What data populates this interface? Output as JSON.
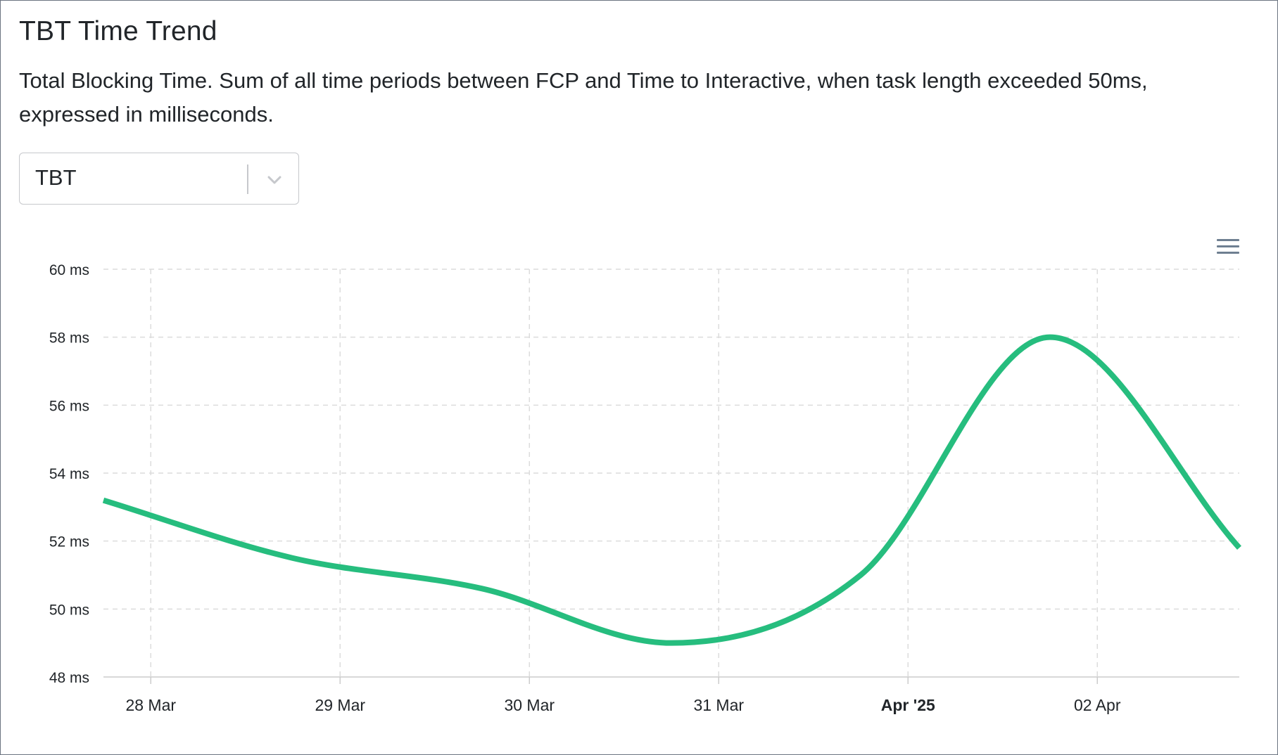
{
  "card": {
    "title": "TBT Time Trend",
    "description": "Total Blocking Time. Sum of all time periods between FCP and Time to Interactive, when task length exceeded 50ms, expressed in milliseconds."
  },
  "metric_select": {
    "value": "TBT"
  },
  "toolbar": {
    "menu_icon": "hamburger-menu-icon"
  },
  "colors": {
    "line": "#26bd7e",
    "grid": "#dcdcdc",
    "axis": "#cccccc",
    "text": "#212529"
  },
  "chart_data": {
    "type": "line",
    "title": "",
    "xlabel": "",
    "ylabel": "",
    "y_unit": "ms",
    "ylim": [
      48,
      60
    ],
    "y_ticks": [
      60,
      58,
      56,
      54,
      52,
      50,
      48
    ],
    "y_tick_labels": [
      "60 ms",
      "58 ms",
      "56 ms",
      "54 ms",
      "52 ms",
      "50 ms",
      "48 ms"
    ],
    "x_range": [
      "2025-03-27 18:00",
      "2025-04-02 18:00"
    ],
    "x_ticks": [
      "2025-03-28",
      "2025-03-29",
      "2025-03-30",
      "2025-03-31",
      "2025-04-01",
      "2025-04-02"
    ],
    "x_tick_labels": [
      "28 Mar",
      "29 Mar",
      "30 Mar",
      "31 Mar",
      "Apr '25",
      "02 Apr"
    ],
    "x_tick_bold": [
      false,
      false,
      false,
      false,
      true,
      false
    ],
    "grid": true,
    "legend": "none",
    "series": [
      {
        "x": [
          "2025-03-27 18:00",
          "2025-03-28 18:00",
          "2025-03-29 18:00",
          "2025-03-30 18:00",
          "2025-03-31 18:00",
          "2025-04-01 18:00",
          "2025-04-02 18:00"
        ],
        "values": [
          53.2,
          51.5,
          50.6,
          49.0,
          51.0,
          58.0,
          51.8
        ]
      }
    ]
  }
}
